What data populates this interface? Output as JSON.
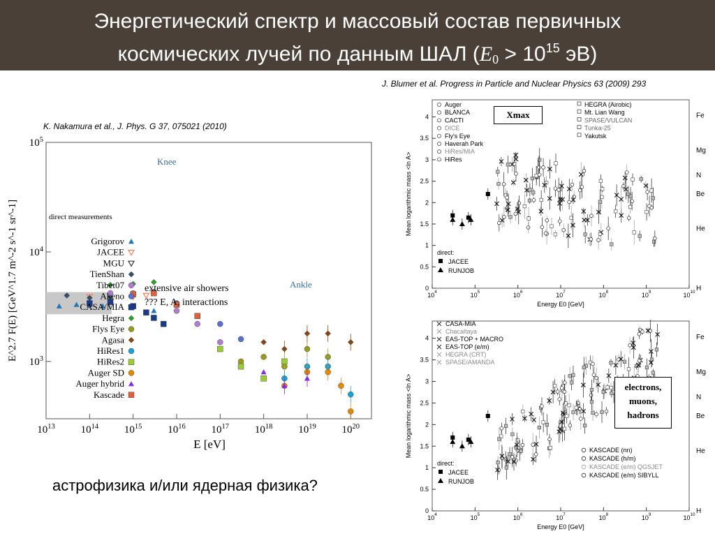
{
  "title": {
    "line1": "Энергетический спектр и массовый состав первичных",
    "line2_prefix": "космических лучей по данным ШАЛ (",
    "e_symbol": "E",
    "e_sub": "0",
    "gt": " > 10",
    "exp": "15",
    "unit": " эВ)"
  },
  "citations": {
    "left": "K. Nakamura et al., J. Phys. G 37, 075021 (2010)",
    "right": "J. Blumer et al. Progress in Particle and Nuclear Physics 63 (2009) 293"
  },
  "bottom_question": "астрофизика и/или ядерная физика?",
  "chart_data": [
    {
      "type": "scatter",
      "title": "",
      "xlabel": "E [eV]",
      "ylabel": "E^2.7 F(E) [GeV^1.7 m^-2 s^-1 sr^-1]",
      "log_x": true,
      "log_y": true,
      "xlim": [
        10000000000000.0,
        3e+20
      ],
      "ylim": [
        300,
        100000
      ],
      "x_ticks": [
        "10^13",
        "10^14",
        "10^15",
        "10^16",
        "10^17",
        "10^18",
        "10^19",
        "10^20"
      ],
      "y_ticks": [
        "10^3",
        "10^4",
        "10^5"
      ],
      "annotations": {
        "knee": "Knee",
        "ankle": "Ankle",
        "direct": "direct measurements",
        "eas_line1": "extensive air showers",
        "eas_line2": "??? E, A, interactions"
      },
      "legend": [
        {
          "name": "Grigorov",
          "color": "#1f77b4",
          "marker": "tri-up"
        },
        {
          "name": "JACEE",
          "color": "#ff7f50",
          "marker": "tri-down-open"
        },
        {
          "name": "MGU",
          "color": "#333333",
          "marker": "tri-down-open"
        },
        {
          "name": "TienShan",
          "color": "#2f4f6f",
          "marker": "diamond"
        },
        {
          "name": "Tibet07",
          "color": "#b07cd0",
          "marker": "circle"
        },
        {
          "name": "Akeno",
          "color": "#5a6fd0",
          "marker": "circle"
        },
        {
          "name": "CASA/MIA",
          "color": "#1a3a8a",
          "marker": "square"
        },
        {
          "name": "Hegra",
          "color": "#2ca02c",
          "marker": "diamond"
        },
        {
          "name": "Flys Eye",
          "color": "#9a9a20",
          "marker": "circle"
        },
        {
          "name": "Agasa",
          "color": "#8b4513",
          "marker": "diamond"
        },
        {
          "name": "HiRes1",
          "color": "#17a2d8",
          "marker": "circle"
        },
        {
          "name": "HiRes2",
          "color": "#9acd32",
          "marker": "square"
        },
        {
          "name": "Auger SD",
          "color": "#e08a00",
          "marker": "circle"
        },
        {
          "name": "Auger hybrid",
          "color": "#8a2be2",
          "marker": "tri-up"
        },
        {
          "name": "Kascade",
          "color": "#e0603a",
          "marker": "square"
        }
      ],
      "series_points": [
        {
          "name": "Grigorov",
          "x": [
            20000000000000.0,
            50000000000000.0,
            100000000000000.0,
            200000000000000.0,
            1000000000000000.0,
            3000000000000000.0
          ],
          "y": [
            3200,
            3300,
            3300,
            3200,
            3200,
            2900
          ]
        },
        {
          "name": "JACEE",
          "x": [
            100000000000000.0,
            300000000000000.0,
            1000000000000000.0,
            2000000000000000.0
          ],
          "y": [
            3900,
            3500,
            3900,
            4000
          ]
        },
        {
          "name": "TienShan",
          "x": [
            30000000000000.0,
            100000000000000.0,
            300000000000000.0
          ],
          "y": [
            4000,
            3800,
            3900
          ]
        },
        {
          "name": "Tibet07",
          "x": [
            300000000000000.0,
            1000000000000000.0,
            3000000000000000.0,
            1e+16,
            3e+16,
            1e+17
          ],
          "y": [
            4200,
            4200,
            4300,
            2900,
            2200,
            1500
          ]
        },
        {
          "name": "Akeno",
          "x": [
            1000000000000000.0,
            3000000000000000.0,
            1e+16,
            3e+16,
            1e+17,
            3e+17
          ],
          "y": [
            4100,
            4300,
            3400,
            2600,
            2200,
            1600
          ]
        },
        {
          "name": "CASA/MIA",
          "x": [
            100000000000000.0,
            300000000000000.0,
            1000000000000000.0,
            2000000000000000.0,
            3000000000000000.0,
            5000000000000000.0
          ],
          "y": [
            3400,
            3500,
            3200,
            2800,
            2500,
            2200
          ]
        },
        {
          "name": "Hegra",
          "x": [
            300000000000000.0,
            1000000000000000.0,
            3000000000000000.0
          ],
          "y": [
            5000,
            5100,
            5300
          ]
        },
        {
          "name": "Flys Eye",
          "x": [
            3e+17,
            1e+18,
            3e+18,
            1e+19,
            3e+19
          ],
          "y": [
            1000,
            1100,
            900,
            1300,
            1100
          ]
        },
        {
          "name": "Agasa",
          "x": [
            1e+18,
            3e+18,
            1e+19,
            3e+19,
            1e+20
          ],
          "y": [
            1500,
            1300,
            1800,
            1800,
            1500
          ]
        },
        {
          "name": "HiRes1",
          "x": [
            3e+18,
            1e+19,
            3e+19,
            1e+20
          ],
          "y": [
            700,
            900,
            900,
            500
          ]
        },
        {
          "name": "HiRes2",
          "x": [
            1e+17,
            3e+17,
            1e+18,
            3e+18
          ],
          "y": [
            1300,
            900,
            700,
            1000
          ]
        },
        {
          "name": "Auger SD",
          "x": [
            3e+18,
            1e+19,
            3e+19,
            6e+19,
            1e+20
          ],
          "y": [
            600,
            800,
            800,
            600,
            350
          ]
        },
        {
          "name": "Auger hybrid",
          "x": [
            1e+18,
            3e+18,
            1e+19
          ],
          "y": [
            800,
            600,
            700
          ]
        },
        {
          "name": "Kascade",
          "x": [
            1000000000000000.0,
            3000000000000000.0,
            1e+16,
            3e+16
          ],
          "y": [
            4100,
            4200,
            3300,
            2600
          ]
        }
      ]
    },
    {
      "type": "scatter",
      "title": "",
      "box_label": "Xmax",
      "xlabel": "Energy E0 [GeV]",
      "ylabel": "Mean logarithmic mass <ln A>",
      "log_x": true,
      "xlim": [
        10000,
        10000000000.0
      ],
      "ylim": [
        0,
        4.4
      ],
      "x_ticks": [
        "10^4",
        "10^5",
        "10^6",
        "10^7",
        "10^8",
        "10^9",
        "10^10"
      ],
      "y_ticks": [
        "0",
        "0.5",
        "1",
        "1.5",
        "2",
        "2.5",
        "3",
        "3.5",
        "4"
      ],
      "right_labels": [
        "Fe",
        "Mg",
        "N",
        "Be",
        "He",
        "H"
      ],
      "legend_left": [
        "Auger",
        "BLANCA",
        "CACTI",
        "DICE",
        "Fly's Eye",
        "Haverah Park",
        "HiRes/MIA",
        "HiRes"
      ],
      "legend_right": [
        "HEGRA (Airobic)",
        "Mt. Lian Wang",
        "SPASE/VULCAN",
        "Tunka-25",
        "Yakutsk"
      ],
      "direct_title": "direct:",
      "direct": [
        "JACEE",
        "RUNJOB"
      ],
      "direct_points": {
        "JACEE": {
          "x": [
            30000.0,
            70000.0,
            200000.0
          ],
          "y": [
            1.7,
            1.65,
            2.2
          ]
        },
        "RUNJOB": {
          "x": [
            30000.0,
            50000.0,
            80000.0
          ],
          "y": [
            1.6,
            1.5,
            1.6
          ]
        }
      }
    },
    {
      "type": "scatter",
      "title": "",
      "box_label_lines": [
        "electrons,",
        "muons,",
        "hadrons"
      ],
      "xlabel": "Energy E0 [GeV]",
      "ylabel": "Mean logarithmic mass <ln A>",
      "log_x": true,
      "xlim": [
        10000,
        10000000000.0
      ],
      "ylim": [
        0,
        4.4
      ],
      "x_ticks": [
        "10^4",
        "10^5",
        "10^6",
        "10^7",
        "10^8",
        "10^9",
        "10^10"
      ],
      "y_ticks": [
        "0",
        "0.5",
        "1",
        "1.5",
        "2",
        "2.5",
        "3",
        "3.5",
        "4"
      ],
      "right_labels": [
        "Fe",
        "Mg",
        "N",
        "Be",
        "He",
        "H"
      ],
      "legend_top": [
        "CASA-MIA",
        "Chacaltaya",
        "EAS-TOP + MACRO",
        "EAS-TOP (e/m)",
        "HEGRA (CRT)",
        "SPASE/AMANDA"
      ],
      "legend_bottom": [
        "KASCADE (nn)",
        "KASCADE (h/m)",
        "KASCADE (e/m) QGSJET",
        "KASCADE (e/m) SIBYLL"
      ],
      "direct_title": "direct:",
      "direct": [
        "JACEE",
        "RUNJOB"
      ],
      "direct_points": {
        "JACEE": {
          "x": [
            30000.0,
            70000.0,
            200000.0
          ],
          "y": [
            1.7,
            1.65,
            2.2
          ]
        },
        "RUNJOB": {
          "x": [
            30000.0,
            50000.0,
            80000.0
          ],
          "y": [
            1.6,
            1.5,
            1.6
          ]
        }
      }
    }
  ]
}
